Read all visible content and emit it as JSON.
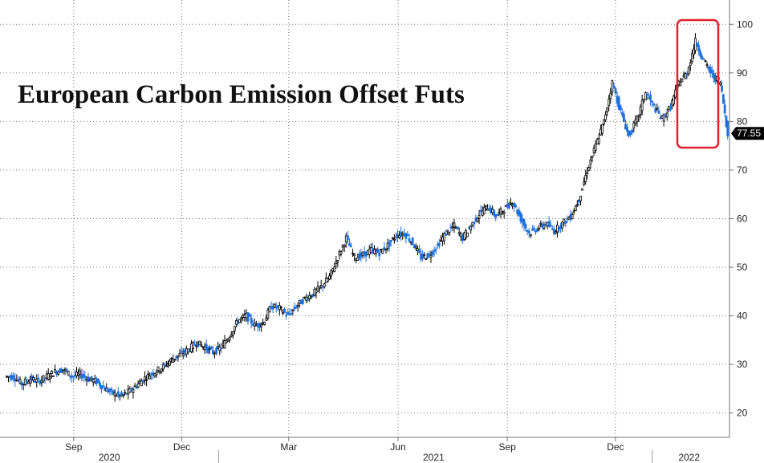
{
  "chart_data": {
    "type": "candlestick",
    "title": "European Carbon Emission Offset Futs",
    "xlabel": "",
    "ylabel": "",
    "ylim": [
      15,
      105
    ],
    "y_ticks": [
      20,
      30,
      40,
      50,
      60,
      70,
      80,
      90,
      100
    ],
    "x_tick_labels": [
      "Sep",
      "Dec",
      "Mar",
      "Jun",
      "Sep",
      "Dec"
    ],
    "x_year_labels": [
      "2020",
      "2021",
      "2022"
    ],
    "last_value_label": "77.55",
    "grid": true,
    "colors": {
      "up": "#000000",
      "down": "#1e6fd9",
      "highlight": "#e0202a",
      "tag": "#000000"
    },
    "series": [
      {
        "name": "",
        "x": [
          "2020-07-06",
          "2020-07-13",
          "2020-07-20",
          "2020-07-27",
          "2020-08-03",
          "2020-08-10",
          "2020-08-17",
          "2020-08-24",
          "2020-08-31",
          "2020-09-07",
          "2020-09-14",
          "2020-09-21",
          "2020-09-28",
          "2020-10-05",
          "2020-10-12",
          "2020-10-19",
          "2020-10-26",
          "2020-11-02",
          "2020-11-09",
          "2020-11-16",
          "2020-11-23",
          "2020-11-30",
          "2020-12-07",
          "2020-12-14",
          "2020-12-21",
          "2020-12-28",
          "2021-01-04",
          "2021-01-11",
          "2021-01-18",
          "2021-01-25",
          "2021-02-01",
          "2021-02-08",
          "2021-02-15",
          "2021-02-22",
          "2021-03-01",
          "2021-03-08",
          "2021-03-15",
          "2021-03-22",
          "2021-03-29",
          "2021-04-05",
          "2021-04-12",
          "2021-04-19",
          "2021-04-26",
          "2021-05-03",
          "2021-05-10",
          "2021-05-17",
          "2021-05-24",
          "2021-05-31",
          "2021-06-07",
          "2021-06-14",
          "2021-06-21",
          "2021-06-28",
          "2021-07-05",
          "2021-07-12",
          "2021-07-19",
          "2021-07-26",
          "2021-08-02",
          "2021-08-09",
          "2021-08-16",
          "2021-08-23",
          "2021-08-30",
          "2021-09-06",
          "2021-09-13",
          "2021-09-20",
          "2021-09-27",
          "2021-10-04",
          "2021-10-11",
          "2021-10-18",
          "2021-10-25",
          "2021-11-01",
          "2021-11-08",
          "2021-11-15",
          "2021-11-22",
          "2021-11-29",
          "2021-12-06",
          "2021-12-13",
          "2021-12-20",
          "2021-12-27",
          "2022-01-03",
          "2022-01-10",
          "2022-01-17",
          "2022-01-24",
          "2022-01-31",
          "2022-02-07",
          "2022-02-14",
          "2022-02-21",
          "2022-02-28"
        ],
        "close": [
          27.5,
          26.0,
          27.0,
          26.5,
          27.5,
          28.5,
          29.0,
          27.5,
          28.0,
          27.0,
          26.5,
          25.0,
          24.0,
          23.5,
          24.5,
          26.0,
          27.5,
          28.5,
          29.5,
          31.0,
          32.0,
          33.0,
          34.5,
          33.5,
          32.5,
          33.5,
          36.0,
          39.0,
          40.0,
          38.0,
          38.5,
          42.0,
          41.5,
          40.0,
          42.0,
          43.5,
          44.5,
          46.0,
          48.0,
          52.0,
          56.0,
          52.0,
          52.5,
          53.5,
          53.0,
          54.5,
          56.5,
          57.0,
          55.0,
          52.0,
          52.5,
          54.5,
          57.0,
          58.5,
          56.0,
          58.5,
          61.0,
          62.5,
          60.5,
          62.0,
          63.5,
          60.0,
          57.0,
          58.0,
          59.0,
          57.5,
          59.0,
          60.5,
          64.0,
          70.0,
          75.0,
          80.0,
          88.0,
          82.0,
          77.0,
          80.5,
          86.0,
          83.0,
          80.5,
          83.0,
          88.0,
          90.0,
          96.5,
          92.5,
          89.5,
          88.0,
          77.55
        ]
      }
    ]
  }
}
